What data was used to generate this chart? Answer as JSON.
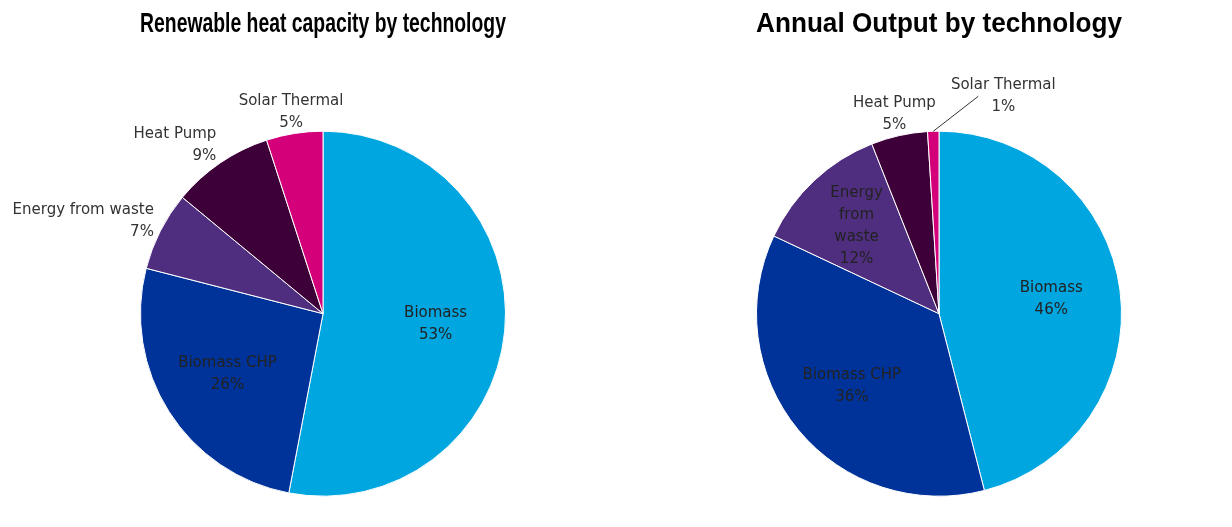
{
  "chart_data": [
    {
      "type": "pie",
      "title": "Renewable heat capacity by technology",
      "categories": [
        "Biomass",
        "Biomass CHP",
        "Energy from waste",
        "Heat Pump",
        "Solar Thermal"
      ],
      "values": [
        53,
        26,
        7,
        9,
        5
      ],
      "value_labels": [
        "53%",
        "26%",
        "7%",
        "9%",
        "5%"
      ],
      "colors": [
        "#00a6e0",
        "#003399",
        "#4f2d7f",
        "#3d0038",
        "#d4007a"
      ],
      "legend": false
    },
    {
      "type": "pie",
      "title": "Annual Output by technology",
      "categories": [
        "Biomass",
        "Biomass CHP",
        "Energy from waste",
        "Heat Pump",
        "Solar Thermal"
      ],
      "values": [
        46,
        36,
        12,
        5,
        1
      ],
      "value_labels": [
        "46%",
        "36%",
        "12%",
        "5%",
        "1%"
      ],
      "colors": [
        "#00a6e0",
        "#003399",
        "#4f2d7f",
        "#3d0038",
        "#d4007a"
      ],
      "legend": false
    }
  ]
}
